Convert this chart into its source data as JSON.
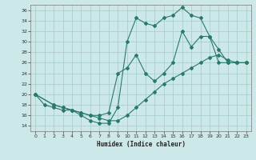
{
  "xlabel": "Humidex (Indice chaleur)",
  "ylabel": "",
  "background_color": "#cce8e8",
  "grid_color": "#aacfcf",
  "line_color": "#2a7a6a",
  "xlim": [
    -0.5,
    23.5
  ],
  "ylim": [
    13,
    37
  ],
  "yticks": [
    14,
    16,
    18,
    20,
    22,
    24,
    26,
    28,
    30,
    32,
    34,
    36
  ],
  "xticks": [
    0,
    1,
    2,
    3,
    4,
    5,
    6,
    7,
    8,
    9,
    10,
    11,
    12,
    13,
    14,
    15,
    16,
    17,
    18,
    19,
    20,
    21,
    22,
    23
  ],
  "line1_x": [
    0,
    1,
    2,
    3,
    4,
    5,
    6,
    7,
    8,
    9,
    10,
    11,
    12,
    13,
    14,
    15,
    16,
    17,
    18,
    19,
    20,
    21,
    22,
    23
  ],
  "line1_y": [
    20,
    18,
    17.5,
    17,
    17,
    16,
    15,
    14.5,
    14.5,
    17.5,
    30,
    34.5,
    33.5,
    33,
    34.5,
    35,
    36.5,
    35,
    34.5,
    31,
    28.5,
    26,
    26,
    26
  ],
  "line2_x": [
    0,
    2,
    3,
    4,
    5,
    6,
    7,
    8,
    9,
    10,
    11,
    12,
    13,
    14,
    15,
    16,
    17,
    18,
    19,
    20,
    21,
    22,
    23
  ],
  "line2_y": [
    20,
    18,
    17.5,
    17,
    16.5,
    16,
    16,
    16.5,
    24,
    25,
    27.5,
    24,
    22.5,
    24,
    26,
    32,
    29,
    31,
    31,
    26,
    26,
    26,
    26
  ],
  "line3_x": [
    0,
    2,
    3,
    4,
    5,
    6,
    7,
    8,
    9,
    10,
    11,
    12,
    13,
    14,
    15,
    16,
    17,
    18,
    19,
    20,
    21,
    22,
    23
  ],
  "line3_y": [
    20,
    18,
    17.5,
    17,
    16.5,
    16,
    15.5,
    15,
    15,
    16,
    17.5,
    19,
    20.5,
    22,
    23,
    24,
    25,
    26,
    27,
    27.5,
    26.5,
    26,
    26
  ]
}
